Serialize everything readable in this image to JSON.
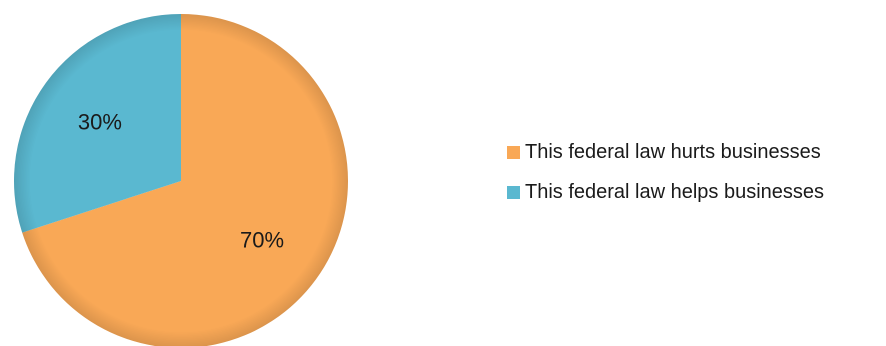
{
  "chart_data": {
    "type": "pie",
    "title": "",
    "slices": [
      {
        "label": "This federal law hurts businesses",
        "value": 70,
        "display": "70%",
        "color": "#F9A856"
      },
      {
        "label": "This federal law helps businesses",
        "value": 30,
        "display": "30%",
        "color": "#5AB8D0"
      }
    ],
    "legend_position": "right"
  }
}
